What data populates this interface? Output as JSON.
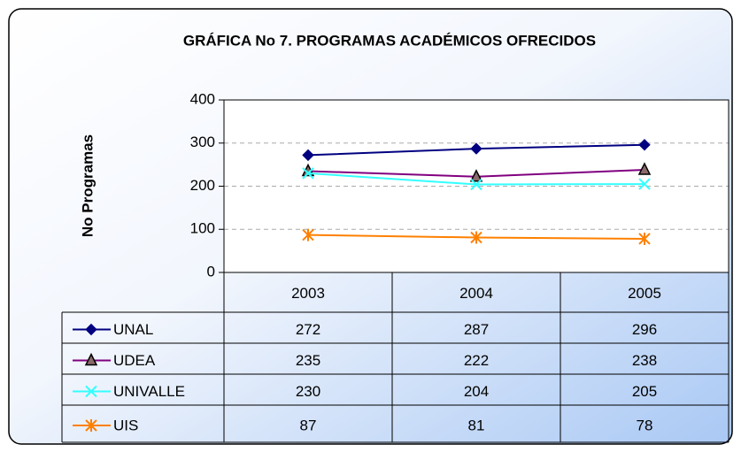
{
  "chart_data": {
    "type": "line",
    "title": "GRÁFICA No 7. PROGRAMAS ACADÉMICOS OFRECIDOS",
    "y_label": "No Programas",
    "categories": [
      "2003",
      "2004",
      "2005"
    ],
    "series": [
      {
        "name": "UNAL",
        "color": "#000080",
        "marker": "diamond",
        "values": [
          272,
          287,
          296
        ]
      },
      {
        "name": "UDEA",
        "color": "#800080",
        "marker": "triangle",
        "values": [
          235,
          222,
          238
        ]
      },
      {
        "name": "UNIVALLE",
        "color": "#33ffff",
        "marker": "x",
        "values": [
          230,
          204,
          205
        ]
      },
      {
        "name": "UIS",
        "color": "#ff8000",
        "marker": "asterisk",
        "values": [
          87,
          81,
          78
        ]
      }
    ],
    "ylim": [
      0,
      400
    ],
    "yticks": [
      0,
      100,
      200,
      300,
      400
    ],
    "grid": true,
    "data_table": true
  }
}
